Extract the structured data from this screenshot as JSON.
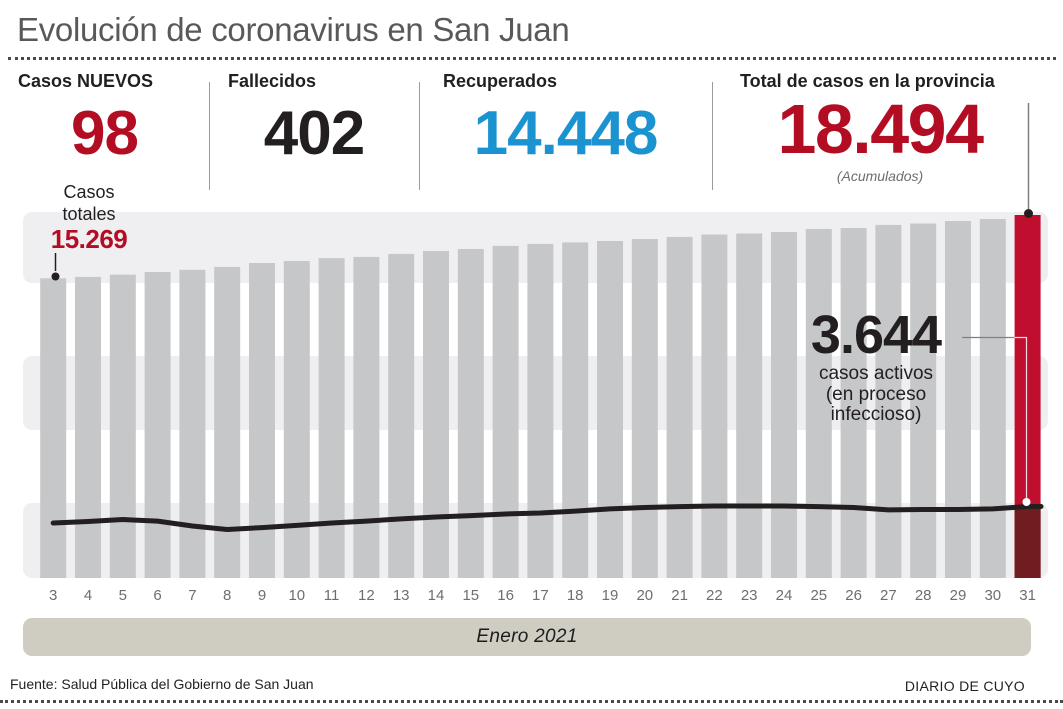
{
  "title": "Evolución de coronavirus en San Juan",
  "stats": [
    {
      "label": "Casos NUEVOS",
      "value": "98"
    },
    {
      "label": "Fallecidos",
      "value": "402"
    },
    {
      "label": "Recuperados",
      "value": "14.448"
    },
    {
      "label": "Total de casos en la provincia",
      "value": "18.494",
      "note": "(Acumulados)"
    }
  ],
  "annotations": {
    "casos_totales": {
      "label": "Casos\ntotales",
      "value": "15.269"
    },
    "casos_activos": {
      "value": "3.644",
      "label": "casos activos\n(en proceso\ninfeccioso)"
    }
  },
  "axis": {
    "month_label": "Enero 2021"
  },
  "footer": {
    "source": "Fuente: Salud Pública del Gobierno de San Juan",
    "credit": "DIARIO DE CUYO"
  },
  "colors": {
    "accent-red": "#b30d23",
    "blue": "#1b93d1",
    "dark-text": "#231f20",
    "title-gray": "#58595b",
    "bar-gray": "#c6c7c9",
    "stripe-gray": "#efeff1",
    "bar-red": "#c00f2e",
    "bar-dark-red": "#701c20",
    "band-beige": "#cfcdc2",
    "axis-gray": "#6d6e71",
    "divider-gray": "#9b9b9b",
    "connector-gray": "#808080"
  },
  "chart_data": {
    "type": "bar",
    "title": "Evolución de coronavirus en San Juan",
    "xlabel": "Enero 2021",
    "ylim": [
      0,
      18494
    ],
    "legend": "none",
    "grid": "horizontal background bands",
    "categories": [
      3,
      4,
      5,
      6,
      7,
      8,
      9,
      10,
      11,
      12,
      13,
      14,
      15,
      16,
      17,
      18,
      19,
      20,
      21,
      22,
      23,
      24,
      25,
      26,
      27,
      28,
      29,
      30,
      31
    ],
    "series": [
      {
        "name": "Casos totales (acumulados)",
        "type": "bar",
        "color": "#c6c7c9",
        "highlight_index": 28,
        "highlight_color": "#c00f2e",
        "values": [
          15269,
          15340,
          15460,
          15590,
          15700,
          15850,
          16050,
          16150,
          16300,
          16360,
          16510,
          16660,
          16760,
          16920,
          17020,
          17100,
          17170,
          17270,
          17380,
          17500,
          17550,
          17630,
          17780,
          17830,
          17990,
          18060,
          18190,
          18290,
          18494
        ]
      },
      {
        "name": "Casos activos (en proceso infeccioso)",
        "type": "line",
        "color": "#231f20",
        "values": [
          2800,
          2880,
          2980,
          2900,
          2650,
          2470,
          2570,
          2680,
          2800,
          2900,
          3010,
          3110,
          3180,
          3260,
          3310,
          3410,
          3520,
          3590,
          3640,
          3670,
          3670,
          3670,
          3640,
          3590,
          3470,
          3490,
          3490,
          3520,
          3644
        ]
      }
    ],
    "annotations": [
      {
        "target": "first_bar",
        "day": 3,
        "text": "Casos totales",
        "value": 15269
      },
      {
        "target": "last_bar",
        "day": 31,
        "text": "Total de casos en la provincia (Acumulados)",
        "value": 18494
      },
      {
        "target": "line_end",
        "day": 31,
        "text": "casos activos (en proceso infeccioso)",
        "value": 3644
      }
    ]
  }
}
